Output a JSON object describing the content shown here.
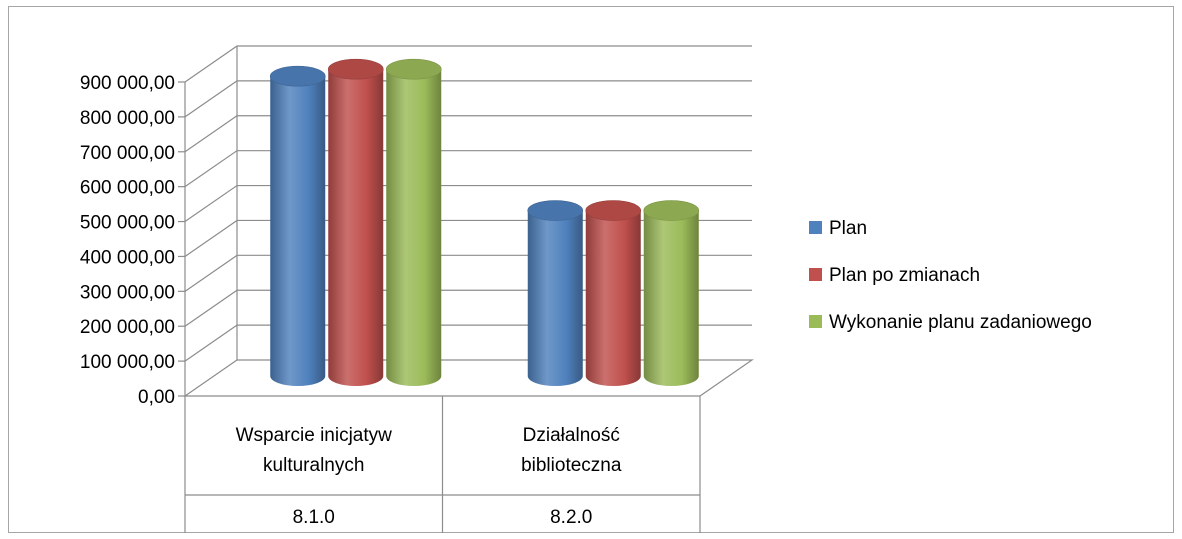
{
  "colors": {
    "grid": "#8c8c8c",
    "frame": "#a6a6a6"
  },
  "chart_data": {
    "type": "bar",
    "subtype": "3d-cylinder-clustered",
    "title": "",
    "xlabel": "",
    "ylabel": "",
    "ylim": [
      0,
      900000
    ],
    "ytick_step": 100000,
    "y_tick_labels": [
      "0,00",
      "100 000,00",
      "200 000,00",
      "300 000,00",
      "400 000,00",
      "500 000,00",
      "600 000,00",
      "700 000,00",
      "800 000,00",
      "900 000,00"
    ],
    "categories": [
      {
        "name_lines": [
          "Wsparcie inicjatyw",
          "kulturalnych"
        ],
        "code": "8.1.0"
      },
      {
        "name_lines": [
          "Działalność",
          "biblioteczna"
        ],
        "code": "8.2.0"
      }
    ],
    "series": [
      {
        "name": "Plan",
        "color": "#4f81bd",
        "values": [
          865000,
          480000
        ]
      },
      {
        "name": "Plan po zmianach",
        "color": "#c0504d",
        "values": [
          885000,
          480000
        ]
      },
      {
        "name": "Wykonanie planu zadaniowego",
        "color": "#9bbb59",
        "values": [
          885000,
          480000
        ]
      }
    ],
    "legend_position": "right",
    "grid": true
  }
}
